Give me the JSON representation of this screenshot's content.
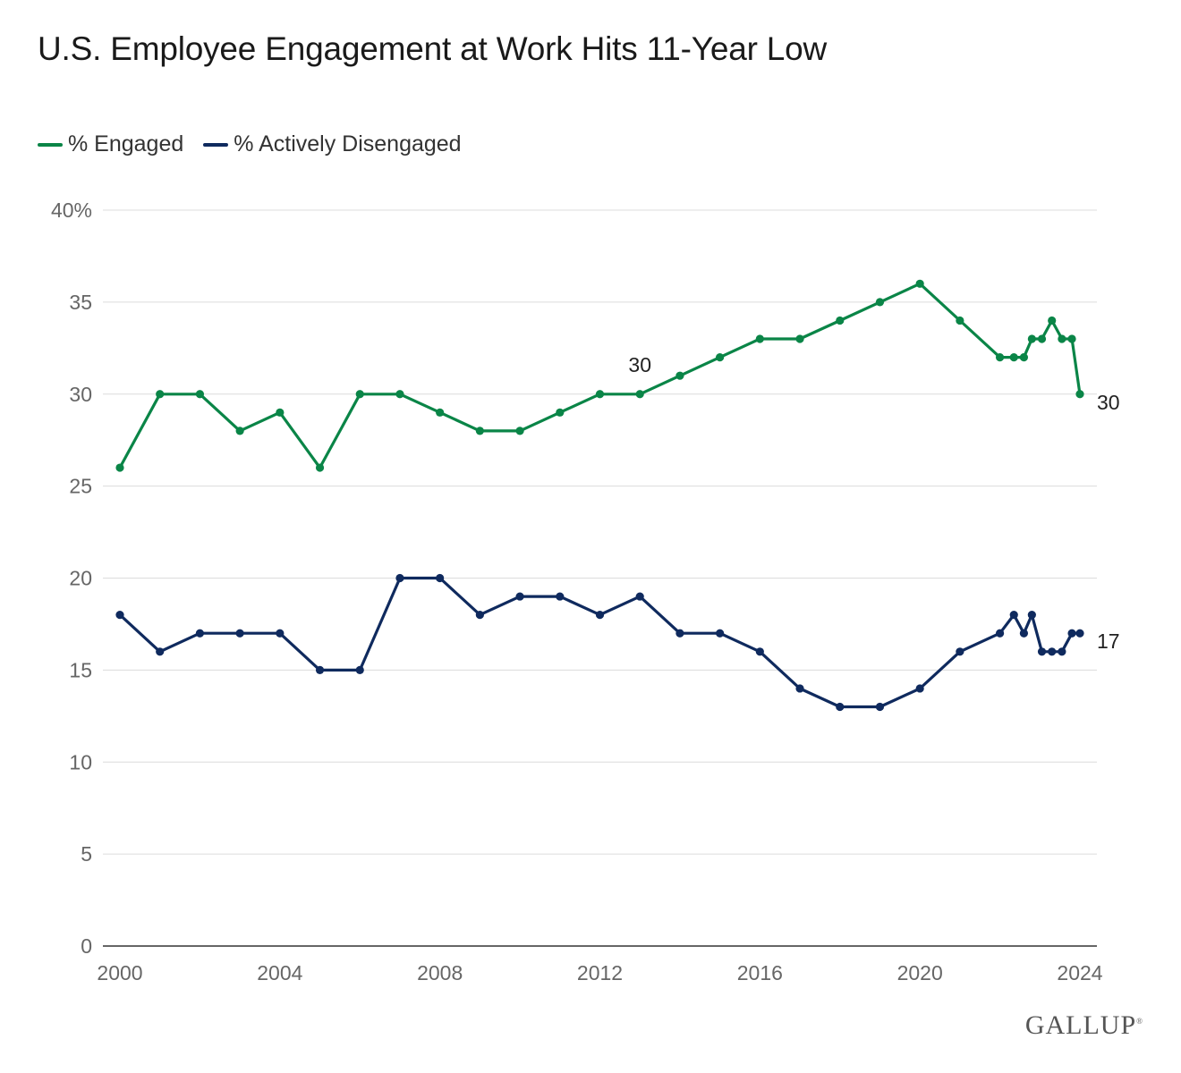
{
  "title": "U.S. Employee Engagement at Work Hits 11-Year Low",
  "brand": "GALLUP",
  "chart_data": {
    "type": "line",
    "title": "U.S. Employee Engagement at Work Hits 11-Year Low",
    "xlabel": "",
    "ylabel": "",
    "xlim": [
      2000,
      2024
    ],
    "ylim": [
      0,
      40
    ],
    "x_ticks": [
      2000,
      2004,
      2008,
      2012,
      2016,
      2020,
      2024
    ],
    "y_ticks": [
      {
        "value": 0,
        "label": "0"
      },
      {
        "value": 5,
        "label": "5"
      },
      {
        "value": 10,
        "label": "10"
      },
      {
        "value": 15,
        "label": "15"
      },
      {
        "value": 20,
        "label": "20"
      },
      {
        "value": 25,
        "label": "25"
      },
      {
        "value": 30,
        "label": "30"
      },
      {
        "value": 35,
        "label": "35"
      },
      {
        "value": 40,
        "label": "40%"
      }
    ],
    "grid": true,
    "legend_position": "top-left",
    "series": [
      {
        "name": "% Engaged",
        "color": "#0a8547",
        "points": [
          [
            2000,
            26
          ],
          [
            2001,
            30
          ],
          [
            2002,
            30
          ],
          [
            2003,
            28
          ],
          [
            2004,
            29
          ],
          [
            2005,
            26
          ],
          [
            2006,
            30
          ],
          [
            2007,
            30
          ],
          [
            2008,
            29
          ],
          [
            2009,
            28
          ],
          [
            2010,
            28
          ],
          [
            2011,
            29
          ],
          [
            2012,
            30
          ],
          [
            2013,
            30
          ],
          [
            2014,
            31
          ],
          [
            2015,
            32
          ],
          [
            2016,
            33
          ],
          [
            2017,
            33
          ],
          [
            2018,
            34
          ],
          [
            2019,
            35
          ],
          [
            2020,
            36
          ],
          [
            2021,
            34
          ],
          [
            2022,
            32
          ],
          [
            2022.35,
            32
          ],
          [
            2022.6,
            32
          ],
          [
            2022.8,
            33
          ],
          [
            2023.05,
            33
          ],
          [
            2023.3,
            34
          ],
          [
            2023.55,
            33
          ],
          [
            2023.8,
            33
          ],
          [
            2024,
            30
          ]
        ],
        "annotations": [
          {
            "x": 2013,
            "y": 30,
            "text": "30",
            "position": "above"
          },
          {
            "x": 2024,
            "y": 30,
            "text": "30",
            "position": "right"
          }
        ]
      },
      {
        "name": "% Actively Disengaged",
        "color": "#0f2a5e",
        "points": [
          [
            2000,
            18
          ],
          [
            2001,
            16
          ],
          [
            2002,
            17
          ],
          [
            2003,
            17
          ],
          [
            2004,
            17
          ],
          [
            2005,
            15
          ],
          [
            2006,
            15
          ],
          [
            2007,
            20
          ],
          [
            2008,
            20
          ],
          [
            2009,
            18
          ],
          [
            2010,
            19
          ],
          [
            2011,
            19
          ],
          [
            2012,
            18
          ],
          [
            2013,
            19
          ],
          [
            2014,
            17
          ],
          [
            2015,
            17
          ],
          [
            2016,
            16
          ],
          [
            2017,
            14
          ],
          [
            2018,
            13
          ],
          [
            2019,
            13
          ],
          [
            2020,
            14
          ],
          [
            2021,
            16
          ],
          [
            2022,
            17
          ],
          [
            2022.35,
            18
          ],
          [
            2022.6,
            17
          ],
          [
            2022.8,
            18
          ],
          [
            2023.05,
            16
          ],
          [
            2023.3,
            16
          ],
          [
            2023.55,
            16
          ],
          [
            2023.8,
            17
          ],
          [
            2024,
            17
          ]
        ],
        "annotations": [
          {
            "x": 2024,
            "y": 17,
            "text": "17",
            "position": "right"
          }
        ]
      }
    ]
  }
}
